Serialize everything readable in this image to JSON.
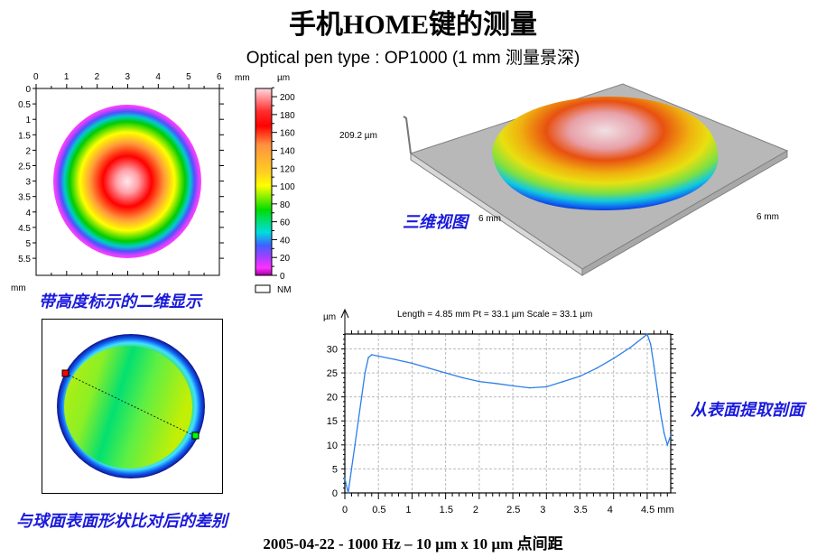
{
  "header": {
    "title": "手机HOME键的测量",
    "subtitle": "Optical pen type : OP1000 (1 mm 测量景深)"
  },
  "map2d": {
    "caption": "带高度标示的二维显示",
    "x_unit": "mm",
    "y_unit": "mm",
    "x_ticks": [
      "0",
      "1",
      "2",
      "3",
      "4",
      "5",
      "6"
    ],
    "y_ticks": [
      "0",
      "0.5",
      "1",
      "1.5",
      "2",
      "2.5",
      "3",
      "3.5",
      "4",
      "4.5",
      "5",
      "5.5"
    ],
    "colorbar": {
      "unit": "µm",
      "ticks": [
        "200",
        "180",
        "160",
        "140",
        "120",
        "100",
        "80",
        "60",
        "40",
        "20",
        "0"
      ],
      "nm_label": "NM",
      "colors": [
        "#ffd0d8",
        "#ff0000",
        "#ff9040",
        "#ffff00",
        "#00dd00",
        "#00dddd",
        "#4040ff",
        "#ff30ff",
        "#a000a0"
      ]
    }
  },
  "view3d": {
    "caption": "三维视图",
    "z_label": "209.2 µm",
    "x_label": "6 mm",
    "y_label": "6 mm"
  },
  "diffmap": {
    "caption": "与球面表面形状比对后的差别",
    "marker_start_color": "#ff0000",
    "marker_end_color": "#00ff00"
  },
  "profile": {
    "caption": "从表面提取剖面",
    "info": "Length = 4.85 mm  Pt = 33.1 µm  Scale = 33.1 µm",
    "line_color": "#2b7fe8"
  },
  "chart_data": [
    {
      "type": "line",
      "title": "Length = 4.85 mm  Pt = 33.1 µm  Scale = 33.1 µm",
      "xlabel": "mm",
      "ylabel": "µm",
      "xlim": [
        0,
        4.85
      ],
      "ylim": [
        0,
        33.1
      ],
      "x_ticks": [
        "0",
        "0.5",
        "1",
        "1.5",
        "2",
        "2.5",
        "3",
        "3.5",
        "4",
        "4.5 mm"
      ],
      "y_ticks": [
        "0",
        "5",
        "10",
        "15",
        "20",
        "25",
        "30"
      ],
      "grid": true,
      "series": [
        {
          "name": "profile",
          "x": [
            0,
            0.05,
            0.1,
            0.15,
            0.2,
            0.25,
            0.3,
            0.35,
            0.4,
            0.5,
            0.75,
            1.0,
            1.25,
            1.5,
            1.75,
            2.0,
            2.25,
            2.5,
            2.75,
            3.0,
            3.25,
            3.5,
            3.75,
            4.0,
            4.25,
            4.45,
            4.5,
            4.55,
            4.6,
            4.65,
            4.7,
            4.75,
            4.8,
            4.85
          ],
          "y": [
            3,
            0,
            5,
            10,
            15,
            20,
            25,
            28.2,
            28.8,
            28.5,
            27.8,
            27.0,
            26.0,
            25.0,
            24.0,
            23.2,
            22.8,
            22.3,
            21.9,
            22.1,
            23.2,
            24.3,
            26.0,
            28.0,
            30.3,
            32.5,
            33.1,
            31.0,
            26.5,
            21.5,
            16.5,
            12.5,
            10.0,
            12.0
          ]
        }
      ]
    }
  ],
  "footer": "2005-04-22 - 1000 Hz – 10 µm x 10 µm 点间距"
}
